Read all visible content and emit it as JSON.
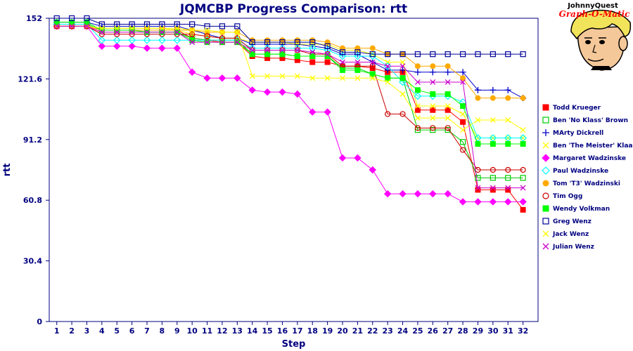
{
  "chart_data": {
    "type": "line",
    "title": "JQMCBP Progress Comparison: rtt",
    "xlabel": "Step",
    "ylabel": "rtt",
    "ylim": [
      0,
      152
    ],
    "yticks": [
      "0",
      "30.4",
      "60.8",
      "91.2",
      "121.6",
      "152"
    ],
    "x": [
      1,
      2,
      3,
      4,
      5,
      6,
      7,
      8,
      9,
      10,
      11,
      12,
      13,
      14,
      15,
      16,
      17,
      18,
      19,
      20,
      21,
      22,
      23,
      24,
      25,
      26,
      27,
      28,
      29,
      30,
      31,
      32
    ],
    "grid": false,
    "legend_position": "right",
    "series": [
      {
        "name": "Todd Krueger",
        "color": "#ff0000",
        "marker": "square-filled",
        "values": [
          148,
          148,
          148,
          146,
          146,
          146,
          146,
          146,
          146,
          142,
          141,
          140,
          140,
          133,
          132,
          132,
          131,
          130,
          130,
          128,
          128,
          127,
          125,
          125,
          106,
          106,
          106,
          100,
          66,
          66,
          66,
          56
        ]
      },
      {
        "name": "Ben 'No Klass' Brown",
        "color": "#00cc00",
        "marker": "square-open",
        "values": [
          149,
          149,
          149,
          146,
          146,
          146,
          145,
          145,
          145,
          142,
          141,
          141,
          141,
          134,
          134,
          134,
          133,
          133,
          133,
          127,
          127,
          124,
          122,
          122,
          96,
          96,
          96,
          90,
          72,
          72,
          72,
          72
        ]
      },
      {
        "name": "MArty Dickrell",
        "color": "#0000cc",
        "marker": "plus",
        "values": [
          150,
          150,
          150,
          148,
          148,
          148,
          148,
          148,
          148,
          146,
          144,
          142,
          142,
          139,
          139,
          139,
          139,
          138,
          137,
          134,
          134,
          130,
          126,
          126,
          125,
          125,
          125,
          125,
          116,
          116,
          116,
          112
        ]
      },
      {
        "name": "Ben 'The Meister' Klaas",
        "color": "#ffff00",
        "marker": "cross",
        "values": [
          148,
          148,
          148,
          147,
          147,
          147,
          147,
          147,
          146,
          144,
          143,
          142,
          142,
          140,
          140,
          140,
          139,
          139,
          139,
          136,
          136,
          134,
          130,
          130,
          108,
          108,
          108,
          104,
          92,
          92,
          92,
          92
        ]
      },
      {
        "name": "Margaret Wadzinske",
        "color": "#ff00ff",
        "marker": "diamond-filled",
        "values": [
          148,
          148,
          148,
          138,
          138,
          138,
          137,
          137,
          137,
          125,
          122,
          122,
          122,
          116,
          115,
          115,
          114,
          105,
          105,
          82,
          82,
          76,
          64,
          64,
          64,
          64,
          64,
          60,
          60,
          60,
          60,
          60
        ]
      },
      {
        "name": "Paul Wadzinske",
        "color": "#00ffff",
        "marker": "diamond-open",
        "values": [
          149,
          149,
          149,
          141,
          141,
          141,
          141,
          141,
          141,
          141,
          141,
          141,
          141,
          137,
          137,
          137,
          137,
          137,
          136,
          133,
          133,
          133,
          128,
          120,
          113,
          113,
          113,
          110,
          92,
          92,
          92,
          92
        ]
      },
      {
        "name": "Tom 'T3' Wadzinski",
        "color": "#ffaa00",
        "marker": "circle-filled",
        "values": [
          148,
          148,
          148,
          146,
          146,
          146,
          146,
          146,
          146,
          146,
          145,
          145,
          145,
          141,
          141,
          141,
          141,
          141,
          140,
          137,
          137,
          137,
          134,
          134,
          128,
          128,
          128,
          122,
          112,
          112,
          112,
          112
        ]
      },
      {
        "name": "Tim Ogg",
        "color": "#cc0000",
        "marker": "circle-open",
        "values": [
          148,
          148,
          148,
          144,
          144,
          144,
          144,
          144,
          144,
          144,
          143,
          142,
          142,
          136,
          136,
          136,
          136,
          134,
          134,
          128,
          128,
          128,
          104,
          104,
          97,
          97,
          97,
          86,
          76,
          76,
          76,
          76
        ]
      },
      {
        "name": "Wendy Volkman",
        "color": "#00ff00",
        "marker": "square-filled",
        "values": [
          150,
          150,
          150,
          146,
          146,
          146,
          145,
          145,
          145,
          141,
          140,
          140,
          140,
          134,
          134,
          134,
          133,
          133,
          133,
          126,
          126,
          124,
          122,
          122,
          116,
          114,
          114,
          108,
          89,
          89,
          89,
          89
        ]
      },
      {
        "name": "Greg Wenz",
        "color": "#000099",
        "marker": "square-open",
        "values": [
          152,
          152,
          152,
          149,
          149,
          149,
          149,
          149,
          149,
          149,
          148,
          148,
          148,
          140,
          140,
          140,
          140,
          140,
          138,
          135,
          135,
          134,
          134,
          134,
          134,
          134,
          134,
          134,
          134,
          134,
          134,
          134
        ]
      },
      {
        "name": "Jack Wenz",
        "color": "#ffff00",
        "marker": "cross",
        "values": [
          148,
          148,
          148,
          147,
          147,
          147,
          147,
          147,
          147,
          146,
          146,
          145,
          145,
          123,
          123,
          123,
          123,
          122,
          122,
          122,
          122,
          122,
          120,
          114,
          102,
          102,
          102,
          96,
          101,
          101,
          101,
          96
        ]
      },
      {
        "name": "Julian Wenz",
        "color": "#cc00cc",
        "marker": "x",
        "values": [
          148,
          148,
          148,
          145,
          145,
          145,
          145,
          145,
          145,
          140,
          140,
          140,
          140,
          136,
          136,
          136,
          136,
          135,
          134,
          130,
          130,
          130,
          128,
          128,
          120,
          120,
          120,
          120,
          67,
          67,
          67,
          67
        ]
      }
    ]
  },
  "logo": {
    "line1": "JohnnyQuest",
    "line2": "Graph-O-Matic",
    "skin_color": "#f5c89a",
    "hair_color": "#f2e45a",
    "background_color": "#ffffff"
  }
}
